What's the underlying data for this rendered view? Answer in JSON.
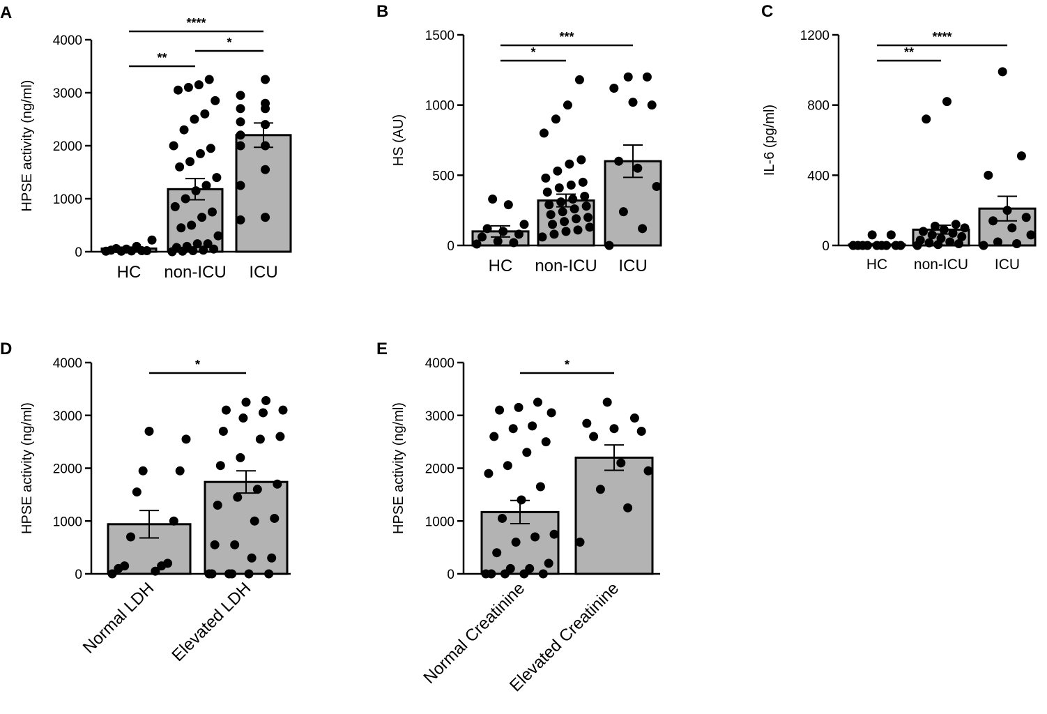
{
  "chart_data": [
    {
      "panel": "A",
      "type": "bar",
      "ylabel": "HPSE activity (ng/ml)",
      "ylim": [
        0,
        4000
      ],
      "yticks": [
        0,
        1000,
        2000,
        3000,
        4000
      ],
      "categories": [
        "HC",
        "non-ICU",
        "ICU"
      ],
      "means": [
        60,
        1180,
        2200
      ],
      "sem": [
        25,
        200,
        230
      ],
      "points": [
        [
          10,
          20,
          50,
          30,
          20,
          15,
          60,
          220,
          100,
          10
        ],
        [
          0,
          10,
          20,
          30,
          50,
          80,
          100,
          150,
          150,
          300,
          450,
          500,
          650,
          750,
          850,
          1000,
          1150,
          1250,
          1400,
          1600,
          1700,
          1850,
          1950,
          2000,
          2300,
          2500,
          2600,
          2850,
          3050,
          3100,
          3150,
          3250
        ],
        [
          600,
          650,
          1250,
          1550,
          2000,
          2000,
          2200,
          2400,
          2450,
          2700,
          2700,
          2800,
          2950,
          3250
        ]
      ],
      "significance": [
        {
          "from": 0,
          "to": 1,
          "label": "**"
        },
        {
          "from": 1,
          "to": 2,
          "label": "*"
        },
        {
          "from": 0,
          "to": 2,
          "label": "****"
        }
      ]
    },
    {
      "panel": "B",
      "type": "bar",
      "ylabel": "HS (AU)",
      "ylim": [
        0,
        1500
      ],
      "yticks": [
        0,
        500,
        1000,
        1500
      ],
      "categories": [
        "HC",
        "non-ICU",
        "ICU"
      ],
      "means": [
        100,
        320,
        600
      ],
      "sem": [
        40,
        45,
        115
      ],
      "points": [
        [
          10,
          20,
          30,
          60,
          80,
          100,
          120,
          150,
          290,
          330
        ],
        [
          60,
          80,
          100,
          110,
          130,
          150,
          170,
          190,
          200,
          220,
          240,
          260,
          280,
          290,
          310,
          330,
          350,
          380,
          410,
          430,
          450,
          480,
          530,
          580,
          610,
          800,
          900,
          1000,
          1180
        ],
        [
          0,
          120,
          240,
          420,
          550,
          600,
          1000,
          1020,
          1120,
          1200,
          1200
        ]
      ],
      "significance": [
        {
          "from": 0,
          "to": 1,
          "label": "*"
        },
        {
          "from": 0,
          "to": 2,
          "label": "***"
        }
      ]
    },
    {
      "panel": "C",
      "type": "bar",
      "ylabel": "IL-6 (pg/ml)",
      "ylim": [
        0,
        1200
      ],
      "yticks": [
        0,
        400,
        800,
        1200
      ],
      "categories": [
        "HC",
        "non-ICU",
        "ICU"
      ],
      "means": [
        5,
        90,
        210
      ],
      "sem": [
        5,
        25,
        70
      ],
      "points": [
        [
          0,
          0,
          0,
          0,
          0,
          0,
          0,
          0,
          0,
          60,
          60
        ],
        [
          0,
          5,
          10,
          15,
          20,
          30,
          40,
          50,
          60,
          70,
          80,
          90,
          100,
          110,
          120,
          720,
          820
        ],
        [
          0,
          10,
          20,
          60,
          100,
          140,
          160,
          200,
          400,
          510,
          990
        ]
      ],
      "significance": [
        {
          "from": 0,
          "to": 1,
          "label": "**"
        },
        {
          "from": 0,
          "to": 2,
          "label": "****"
        }
      ]
    },
    {
      "panel": "D",
      "type": "bar",
      "ylabel": "HPSE activity (ng/ml)",
      "ylim": [
        0,
        4000
      ],
      "yticks": [
        0,
        1000,
        2000,
        3000,
        4000
      ],
      "categories": [
        "Normal LDH",
        "Elevated LDH"
      ],
      "means": [
        940,
        1740
      ],
      "sem": [
        260,
        210
      ],
      "points": [
        [
          0,
          50,
          100,
          150,
          150,
          200,
          700,
          1000,
          1550,
          1950,
          1950,
          2550,
          2700
        ],
        [
          0,
          0,
          0,
          0,
          0,
          0,
          300,
          300,
          550,
          550,
          1000,
          1050,
          1300,
          1450,
          1600,
          1700,
          2050,
          2200,
          2550,
          2600,
          2700,
          2950,
          3050,
          3100,
          3100,
          3250,
          3280
        ]
      ],
      "significance": [
        {
          "from": 0,
          "to": 1,
          "label": "*"
        }
      ]
    },
    {
      "panel": "E",
      "type": "bar",
      "ylabel": "HPSE activity (ng/ml)",
      "ylim": [
        0,
        4000
      ],
      "yticks": [
        0,
        1000,
        2000,
        3000,
        4000
      ],
      "categories": [
        "Normal Creatinine",
        "Elevated Creatinine"
      ],
      "means": [
        1170,
        2200
      ],
      "sem": [
        220,
        240
      ],
      "points": [
        [
          0,
          0,
          0,
          0,
          0,
          100,
          100,
          200,
          400,
          600,
          700,
          750,
          1050,
          1400,
          1650,
          1900,
          2050,
          2300,
          2500,
          2600,
          2750,
          2800,
          3050,
          3100,
          3150,
          3250
        ],
        [
          600,
          1250,
          1600,
          1950,
          2100,
          2600,
          2700,
          2750,
          2850,
          2950,
          3250
        ]
      ],
      "significance": [
        {
          "from": 0,
          "to": 1,
          "label": "*"
        }
      ]
    }
  ]
}
